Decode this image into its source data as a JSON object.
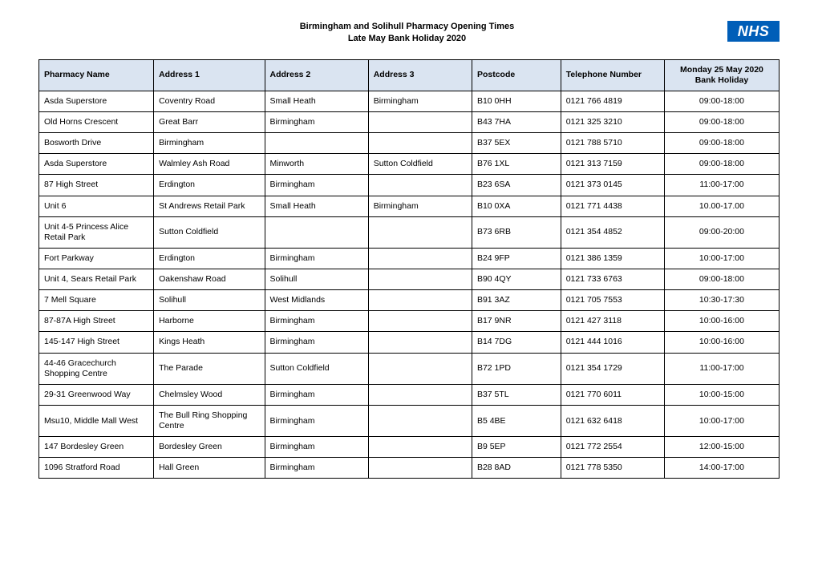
{
  "title_line1": "Birmingham and Solihull Pharmacy Opening Times",
  "title_line2": "Late May Bank Holiday 2020",
  "logo_text": "NHS",
  "colors": {
    "header_bg": "#dae4f1",
    "border": "#000000",
    "nhs_blue": "#005eb8",
    "page_bg": "#ffffff",
    "text": "#000000"
  },
  "column_widths_pct": [
    15.5,
    15,
    14,
    14,
    12,
    14,
    15.5
  ],
  "columns": [
    "Pharmacy Name",
    "Address 1",
    "Address 2",
    "Address 3",
    "Postcode",
    "Telephone Number",
    "Monday 25 May 2020 Bank Holiday"
  ],
  "rows": [
    [
      "Asda Superstore",
      "Coventry Road",
      "Small Heath",
      "Birmingham",
      "B10 0HH",
      "0121 766 4819",
      "09:00-18:00"
    ],
    [
      "Old Horns Crescent",
      "Great Barr",
      "Birmingham",
      "",
      "B43 7HA",
      "0121 325 3210",
      "09:00-18:00"
    ],
    [
      "Bosworth Drive",
      "Birmingham",
      "",
      "",
      "B37 5EX",
      "0121 788 5710",
      "09:00-18:00"
    ],
    [
      "Asda Superstore",
      "Walmley Ash Road",
      "Minworth",
      "Sutton Coldfield",
      "B76 1XL",
      "0121 313 7159",
      "09:00-18:00"
    ],
    [
      "87 High Street",
      "Erdington",
      "Birmingham",
      "",
      "B23 6SA",
      "0121 373 0145",
      "11:00-17:00"
    ],
    [
      "Unit 6",
      "St Andrews Retail Park",
      "Small Heath",
      "Birmingham",
      "B10 0XA",
      "0121 771 4438",
      "10.00-17.00"
    ],
    [
      "Unit 4-5 Princess Alice Retail Park",
      "Sutton Coldfield",
      "",
      "",
      "B73 6RB",
      "0121 354 4852",
      "09:00-20:00"
    ],
    [
      "Fort Parkway",
      "Erdington",
      "Birmingham",
      "",
      "B24 9FP",
      "0121 386 1359",
      "10:00-17:00"
    ],
    [
      "Unit 4, Sears Retail Park",
      "Oakenshaw Road",
      "Solihull",
      "",
      "B90 4QY",
      "0121 733 6763",
      "09:00-18:00"
    ],
    [
      "7 Mell Square",
      "Solihull",
      "West Midlands",
      "",
      "B91 3AZ",
      "0121 705 7553",
      "10:30-17:30"
    ],
    [
      "87-87A High Street",
      "Harborne",
      "Birmingham",
      "",
      "B17 9NR",
      "0121 427 3118",
      "10:00-16:00"
    ],
    [
      "145-147 High Street",
      "Kings Heath",
      "Birmingham",
      "",
      "B14 7DG",
      "0121 444 1016",
      "10:00-16:00"
    ],
    [
      "44-46 Gracechurch Shopping Centre",
      "The Parade",
      "Sutton Coldfield",
      "",
      "B72 1PD",
      "0121 354 1729",
      "11:00-17:00"
    ],
    [
      "29-31 Greenwood Way",
      "Chelmsley Wood",
      "Birmingham",
      "",
      "B37 5TL",
      "0121 770 6011",
      "10:00-15:00"
    ],
    [
      "Msu10, Middle Mall West",
      "The Bull Ring Shopping Centre",
      "Birmingham",
      "",
      "B5 4BE",
      "0121 632 6418",
      "10:00-17:00"
    ],
    [
      "147 Bordesley Green",
      "Bordesley Green",
      "Birmingham",
      "",
      "B9 5EP",
      "0121 772 2554",
      "12:00-15:00"
    ],
    [
      "1096 Stratford Road",
      "Hall Green",
      "Birmingham",
      "",
      "B28 8AD",
      "0121 778 5350",
      "14:00-17:00"
    ]
  ]
}
